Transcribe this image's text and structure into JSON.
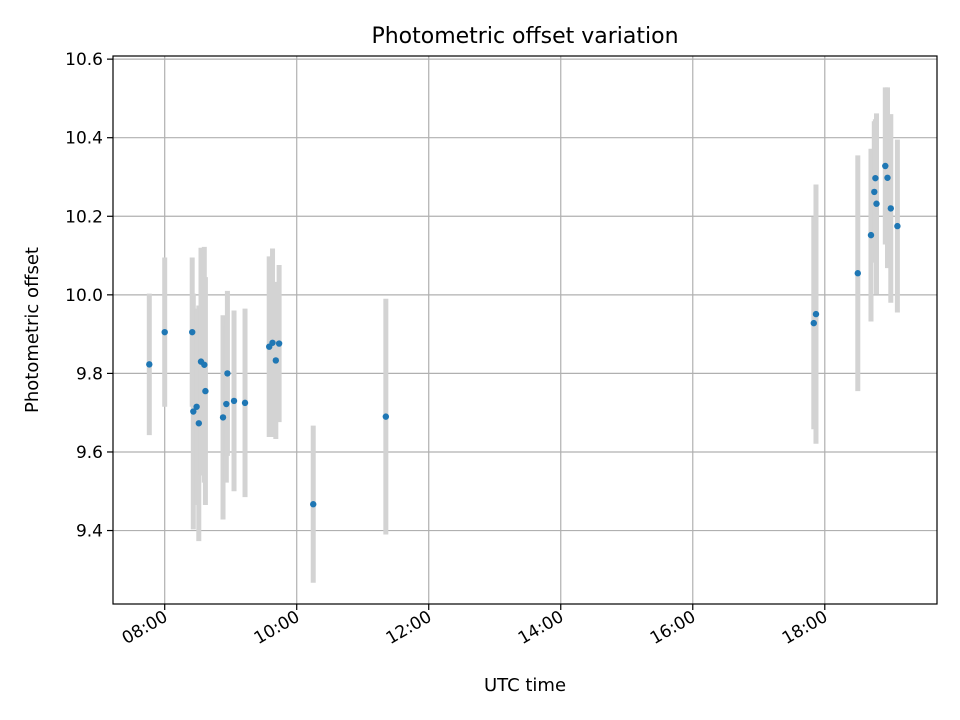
{
  "chart_data": {
    "type": "scatter",
    "title": "Photometric offset variation",
    "xlabel": "UTC time",
    "ylabel": "Photometric offset",
    "x_unit": "hours UTC",
    "xlim": [
      "07:13",
      "19:42"
    ],
    "ylim": [
      9.213,
      10.608
    ],
    "x_ticks": [
      "08:00",
      "10:00",
      "12:00",
      "14:00",
      "16:00",
      "18:00"
    ],
    "y_ticks": [
      "9.4",
      "9.6",
      "9.8",
      "10.0",
      "10.2",
      "10.4",
      "10.6"
    ],
    "grid": true,
    "legend": "none",
    "colors": {
      "point": "#1f77b4",
      "errorbar": "#d3d3d3",
      "grid": "#b0b0b0"
    },
    "points": [
      {
        "x": "07:46",
        "y": 9.823,
        "err": 0.18
      },
      {
        "x": "08:00",
        "y": 9.905,
        "err": 0.19
      },
      {
        "x": "08:25",
        "y": 9.905,
        "err": 0.19
      },
      {
        "x": "08:26",
        "y": 9.703,
        "err": 0.3
      },
      {
        "x": "08:29",
        "y": 9.715,
        "err": 0.25
      },
      {
        "x": "08:31",
        "y": 9.673,
        "err": 0.3
      },
      {
        "x": "08:33",
        "y": 9.83,
        "err": 0.29
      },
      {
        "x": "08:36",
        "y": 9.822,
        "err": 0.3
      },
      {
        "x": "08:37",
        "y": 9.755,
        "err": 0.29
      },
      {
        "x": "08:53",
        "y": 9.688,
        "err": 0.26
      },
      {
        "x": "08:56",
        "y": 9.722,
        "err": 0.2
      },
      {
        "x": "08:57",
        "y": 9.8,
        "err": 0.21
      },
      {
        "x": "09:03",
        "y": 9.73,
        "err": 0.23
      },
      {
        "x": "09:13",
        "y": 9.725,
        "err": 0.24
      },
      {
        "x": "09:35",
        "y": 9.868,
        "err": 0.23
      },
      {
        "x": "09:38",
        "y": 9.878,
        "err": 0.24
      },
      {
        "x": "09:41",
        "y": 9.833,
        "err": 0.2
      },
      {
        "x": "09:44",
        "y": 9.876,
        "err": 0.2
      },
      {
        "x": "10:15",
        "y": 9.467,
        "err": 0.2
      },
      {
        "x": "11:21",
        "y": 9.69,
        "err": 0.3
      },
      {
        "x": "17:50",
        "y": 9.928,
        "err": 0.27
      },
      {
        "x": "17:52",
        "y": 9.951,
        "err": 0.33
      },
      {
        "x": "18:30",
        "y": 10.055,
        "err": 0.3
      },
      {
        "x": "18:42",
        "y": 10.152,
        "err": 0.22
      },
      {
        "x": "18:45",
        "y": 10.262,
        "err": 0.18
      },
      {
        "x": "18:46",
        "y": 10.297,
        "err": 0.15
      },
      {
        "x": "18:47",
        "y": 10.232,
        "err": 0.23
      },
      {
        "x": "18:55",
        "y": 10.328,
        "err": 0.2
      },
      {
        "x": "18:57",
        "y": 10.298,
        "err": 0.23
      },
      {
        "x": "19:00",
        "y": 10.22,
        "err": 0.24
      },
      {
        "x": "19:06",
        "y": 10.175,
        "err": 0.22
      }
    ]
  }
}
